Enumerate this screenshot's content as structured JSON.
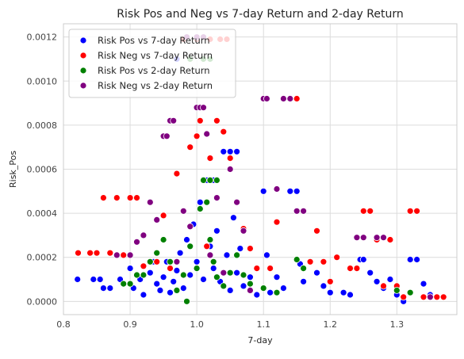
{
  "chart_data": {
    "type": "scatter",
    "title": "Risk Pos and Neg vs 7-day Return and 2-day Return",
    "xlabel": "7-day",
    "ylabel": "Risk_Pos",
    "xlim": [
      0.8,
      1.39
    ],
    "ylim": [
      -6e-05,
      0.00126
    ],
    "xticks": [
      0.8,
      0.9,
      1.0,
      1.1,
      1.2,
      1.3
    ],
    "xtick_labels": [
      "0.8",
      "0.9",
      "1.0",
      "1.1",
      "1.2",
      "1.3"
    ],
    "yticks": [
      0.0,
      0.0002,
      0.0004,
      0.0006,
      0.0008,
      0.001,
      0.0012
    ],
    "ytick_labels": [
      "0.0000",
      "0.0002",
      "0.0004",
      "0.0006",
      "0.0008",
      "0.0010",
      "0.0012"
    ],
    "grid": true,
    "legend_position": "top-left",
    "series": [
      {
        "name": "Risk Pos vs 7-day Return",
        "color": "#0000ff",
        "points": [
          [
            0.821,
            0.0001
          ],
          [
            0.845,
            0.0001
          ],
          [
            0.855,
            0.0001
          ],
          [
            0.86,
            6e-05
          ],
          [
            0.87,
            6e-05
          ],
          [
            0.885,
            0.0001
          ],
          [
            0.9,
            0.00015
          ],
          [
            0.905,
            6e-05
          ],
          [
            0.915,
            0.0001
          ],
          [
            0.92,
            3e-05
          ],
          [
            0.93,
            0.00013
          ],
          [
            0.935,
            0.00018
          ],
          [
            0.94,
            8e-05
          ],
          [
            0.945,
            5e-05
          ],
          [
            0.95,
            0.00011
          ],
          [
            0.955,
            0.00018
          ],
          [
            0.96,
            4e-05
          ],
          [
            0.965,
            9e-05
          ],
          [
            0.97,
            0.00014
          ],
          [
            0.975,
            0.00022
          ],
          [
            0.98,
            6e-05
          ],
          [
            0.985,
            0.00028
          ],
          [
            0.99,
            0.00012
          ],
          [
            0.995,
            0.00035
          ],
          [
            1.0,
            0.00018
          ],
          [
            1.005,
            0.00045
          ],
          [
            1.01,
            0.0001
          ],
          [
            1.015,
            0.00055
          ],
          [
            1.02,
            0.00025
          ],
          [
            1.025,
            0.00015
          ],
          [
            1.03,
            0.00032
          ],
          [
            1.035,
            9e-05
          ],
          [
            1.04,
            0.00068
          ],
          [
            1.045,
            0.00021
          ],
          [
            1.05,
            5e-05
          ],
          [
            1.055,
            0.00038
          ],
          [
            1.06,
            0.00013
          ],
          [
            1.065,
            0.00024
          ],
          [
            1.07,
            7e-05
          ],
          [
            1.08,
            0.00011
          ],
          [
            1.09,
            3e-05
          ],
          [
            1.1,
            0.0005
          ],
          [
            1.105,
            0.00021
          ],
          [
            1.11,
            4e-05
          ],
          [
            1.12,
            0.00011
          ],
          [
            1.13,
            6e-05
          ],
          [
            1.14,
            0.0005
          ],
          [
            1.15,
            0.0005
          ],
          [
            1.155,
            0.00017
          ],
          [
            1.16,
            9e-05
          ],
          [
            1.18,
            0.00013
          ],
          [
            1.19,
            7e-05
          ],
          [
            1.2,
            4e-05
          ],
          [
            1.22,
            4e-05
          ],
          [
            1.23,
            3e-05
          ],
          [
            1.24,
            0.00015
          ],
          [
            1.245,
            0.00019
          ],
          [
            1.25,
            0.00019
          ],
          [
            1.26,
            0.00013
          ],
          [
            1.27,
            9e-05
          ],
          [
            1.28,
            6e-05
          ],
          [
            1.29,
            0.0001
          ],
          [
            1.3,
            3e-05
          ],
          [
            1.31,
            0.0
          ],
          [
            1.32,
            0.00019
          ],
          [
            1.33,
            0.00019
          ],
          [
            1.34,
            8e-05
          ],
          [
            1.35,
            3e-05
          ],
          [
            0.97,
            0.0011
          ],
          [
            0.99,
            0.0011
          ],
          [
            1.0,
            0.0012
          ],
          [
            1.01,
            0.0012
          ],
          [
            1.025,
            0.00055
          ],
          [
            1.05,
            0.00068
          ],
          [
            1.06,
            0.00068
          ]
        ]
      },
      {
        "name": "Risk Neg vs 7-day Return",
        "color": "#ff0000",
        "points": [
          [
            0.822,
            0.00022
          ],
          [
            0.84,
            0.00022
          ],
          [
            0.85,
            0.00022
          ],
          [
            0.86,
            0.00047
          ],
          [
            0.87,
            0.00022
          ],
          [
            0.88,
            0.00047
          ],
          [
            0.89,
            0.00021
          ],
          [
            0.9,
            0.00047
          ],
          [
            0.91,
            0.00047
          ],
          [
            0.92,
            0.00016
          ],
          [
            0.93,
            0.00045
          ],
          [
            0.94,
            0.00018
          ],
          [
            0.95,
            0.00039
          ],
          [
            0.96,
            0.00015
          ],
          [
            0.97,
            0.00058
          ],
          [
            0.98,
            0.00012
          ],
          [
            0.99,
            0.0007
          ],
          [
            1.0,
            0.00075
          ],
          [
            1.005,
            0.00082
          ],
          [
            1.01,
            0.00088
          ],
          [
            1.015,
            0.00025
          ],
          [
            1.02,
            0.00065
          ],
          [
            1.03,
            0.00082
          ],
          [
            1.04,
            0.00077
          ],
          [
            1.05,
            0.00065
          ],
          [
            1.06,
            0.00045
          ],
          [
            1.07,
            0.00033
          ],
          [
            1.08,
            0.00024
          ],
          [
            1.09,
            0.00015
          ],
          [
            1.1,
            0.00092
          ],
          [
            1.105,
            0.00092
          ],
          [
            1.11,
            0.00015
          ],
          [
            1.12,
            0.00036
          ],
          [
            1.13,
            0.00092
          ],
          [
            1.14,
            0.00092
          ],
          [
            1.15,
            0.00092
          ],
          [
            1.16,
            0.00015
          ],
          [
            1.17,
            0.00018
          ],
          [
            1.18,
            0.00032
          ],
          [
            1.19,
            0.00018
          ],
          [
            1.2,
            9e-05
          ],
          [
            1.21,
            0.0002
          ],
          [
            1.23,
            0.00015
          ],
          [
            1.24,
            0.00015
          ],
          [
            1.25,
            0.00041
          ],
          [
            1.26,
            0.00041
          ],
          [
            1.27,
            0.00028
          ],
          [
            1.28,
            7e-05
          ],
          [
            1.29,
            0.00028
          ],
          [
            1.3,
            7e-05
          ],
          [
            1.31,
            2e-05
          ],
          [
            1.32,
            0.00041
          ],
          [
            1.33,
            0.00041
          ],
          [
            1.34,
            2e-05
          ],
          [
            1.36,
            2e-05
          ],
          [
            1.37,
            2e-05
          ],
          [
            0.98,
            0.00119
          ],
          [
            1.0,
            0.00119
          ],
          [
            1.02,
            0.00119
          ],
          [
            1.035,
            0.00119
          ],
          [
            1.045,
            0.00119
          ]
        ]
      },
      {
        "name": "Risk Pos vs 2-day Return",
        "color": "#008000",
        "points": [
          [
            0.89,
            8e-05
          ],
          [
            0.9,
            8e-05
          ],
          [
            0.91,
            0.00012
          ],
          [
            0.92,
            0.00012
          ],
          [
            0.93,
            0.00018
          ],
          [
            0.94,
            0.00022
          ],
          [
            0.95,
            0.00028
          ],
          [
            0.96,
            0.00018
          ],
          [
            0.97,
            5e-05
          ],
          [
            0.98,
            0.00012
          ],
          [
            0.985,
            0.0
          ],
          [
            0.99,
            0.00025
          ],
          [
            1.0,
            0.00015
          ],
          [
            1.005,
            0.00042
          ],
          [
            1.01,
            0.00055
          ],
          [
            1.015,
            0.00045
          ],
          [
            1.02,
            0.00028
          ],
          [
            1.025,
            0.00018
          ],
          [
            1.03,
            0.00011
          ],
          [
            1.04,
            7e-05
          ],
          [
            1.05,
            0.00013
          ],
          [
            1.06,
            0.00021
          ],
          [
            1.07,
            0.00012
          ],
          [
            1.08,
            8e-05
          ],
          [
            1.1,
            6e-05
          ],
          [
            1.12,
            4e-05
          ],
          [
            1.15,
            0.00019
          ],
          [
            1.16,
            0.00015
          ],
          [
            1.3,
            5e-05
          ],
          [
            1.32,
            4e-05
          ],
          [
            1.35,
            2e-05
          ],
          [
            0.99,
            0.0011
          ],
          [
            1.01,
            0.0011
          ],
          [
            1.02,
            0.0011
          ],
          [
            1.02,
            0.00055
          ],
          [
            1.03,
            0.00055
          ]
        ]
      },
      {
        "name": "Risk Neg vs 2-day Return",
        "color": "#800080",
        "points": [
          [
            0.88,
            0.00021
          ],
          [
            0.9,
            0.00021
          ],
          [
            0.91,
            0.00027
          ],
          [
            0.92,
            0.0003
          ],
          [
            0.93,
            0.00045
          ],
          [
            0.94,
            0.00037
          ],
          [
            0.95,
            0.00075
          ],
          [
            0.955,
            0.00075
          ],
          [
            0.96,
            0.00082
          ],
          [
            0.965,
            0.00082
          ],
          [
            0.97,
            0.00018
          ],
          [
            0.98,
            0.00041
          ],
          [
            0.99,
            0.00034
          ],
          [
            1.0,
            0.00088
          ],
          [
            1.005,
            0.00088
          ],
          [
            1.01,
            0.00088
          ],
          [
            1.015,
            0.00076
          ],
          [
            1.02,
            0.00021
          ],
          [
            1.03,
            0.00047
          ],
          [
            1.04,
            0.00013
          ],
          [
            1.05,
            0.0006
          ],
          [
            1.06,
            0.00045
          ],
          [
            1.07,
            0.00032
          ],
          [
            1.08,
            5e-05
          ],
          [
            1.1,
            0.00092
          ],
          [
            1.105,
            0.00092
          ],
          [
            1.12,
            0.00051
          ],
          [
            1.13,
            0.00092
          ],
          [
            1.14,
            0.00092
          ],
          [
            1.15,
            0.00041
          ],
          [
            1.16,
            0.00041
          ],
          [
            1.24,
            0.00029
          ],
          [
            1.25,
            0.00029
          ],
          [
            1.27,
            0.00029
          ],
          [
            1.28,
            0.00029
          ],
          [
            1.35,
            2e-05
          ],
          [
            0.985,
            0.0012
          ],
          [
            1.0,
            0.0012
          ],
          [
            1.01,
            0.0012
          ]
        ]
      }
    ]
  }
}
